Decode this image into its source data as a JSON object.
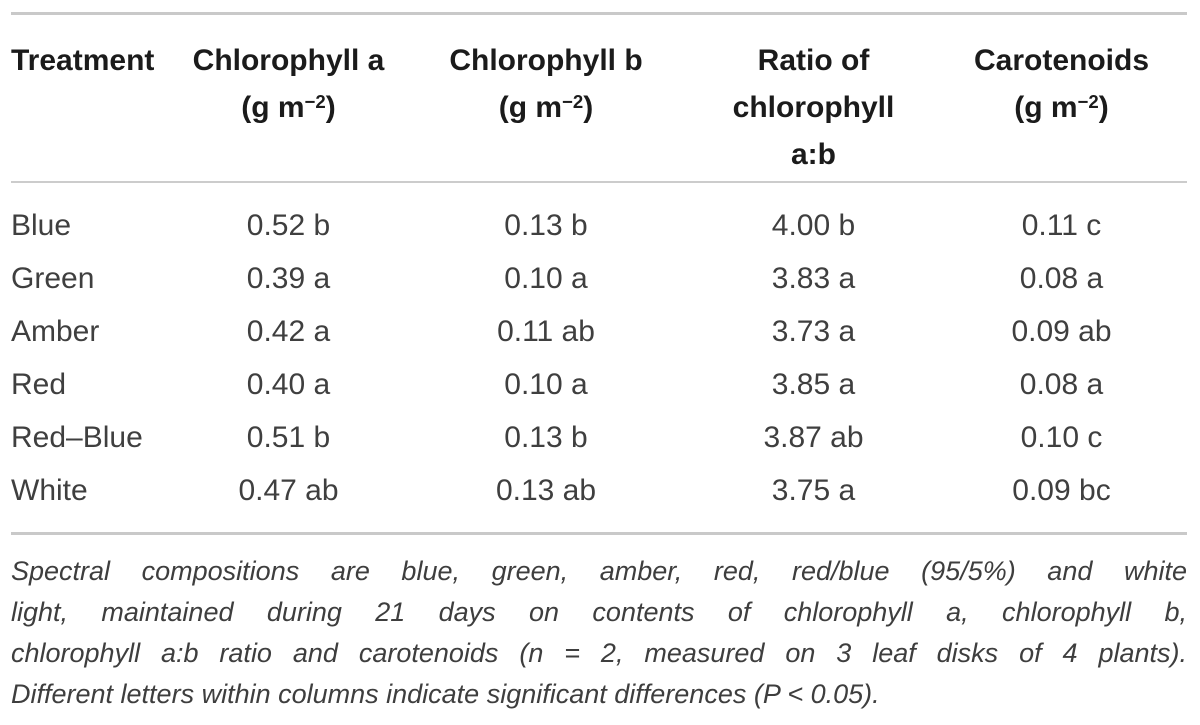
{
  "table": {
    "columns": [
      {
        "name": "Treatment"
      },
      {
        "name": "Chlorophyll a",
        "unit_prefix": "(g m",
        "unit_exponent": "−2",
        "unit_suffix": ")"
      },
      {
        "name": "Chlorophyll b",
        "unit_prefix": "(g m",
        "unit_exponent": "−2",
        "unit_suffix": ")"
      },
      {
        "name_line1": "Ratio of",
        "name_line2": "chlorophyll",
        "name_line3": "a:b"
      },
      {
        "name": "Carotenoids",
        "unit_prefix": "(g m",
        "unit_exponent": "−2",
        "unit_suffix": ")"
      }
    ],
    "rows": [
      {
        "treatment": "Blue",
        "chlorophyll_a": "0.52 b",
        "chlorophyll_b": "0.13 b",
        "ratio_ab": "4.00 b",
        "carotenoids": "0.11 c"
      },
      {
        "treatment": "Green",
        "chlorophyll_a": "0.39 a",
        "chlorophyll_b": "0.10 a",
        "ratio_ab": "3.83 a",
        "carotenoids": "0.08 a"
      },
      {
        "treatment": "Amber",
        "chlorophyll_a": "0.42 a",
        "chlorophyll_b": "0.11 ab",
        "ratio_ab": "3.73 a",
        "carotenoids": "0.09 ab"
      },
      {
        "treatment": "Red",
        "chlorophyll_a": "0.40 a",
        "chlorophyll_b": "0.10 a",
        "ratio_ab": "3.85 a",
        "carotenoids": "0.08 a"
      },
      {
        "treatment": "Red–Blue",
        "chlorophyll_a": "0.51 b",
        "chlorophyll_b": "0.13 b",
        "ratio_ab": "3.87 ab",
        "carotenoids": "0.10 c"
      },
      {
        "treatment": "White",
        "chlorophyll_a": "0.47 ab",
        "chlorophyll_b": "0.13 ab",
        "ratio_ab": "3.75 a",
        "carotenoids": "0.09 bc"
      }
    ]
  },
  "footnote": {
    "lines": [
      "Spectral compositions are blue, green, amber, red, red/blue (95/5%) and white",
      "light, maintained during 21 days on contents of chlorophyll a, chlorophyll b,",
      "chlorophyll a:b ratio and carotenoids (n = 2, measured on 3 leaf disks of 4 plants).",
      "Different letters within columns indicate significant differences (P < 0.05)."
    ]
  },
  "colors": {
    "rule": "#c9c9c9",
    "header_text": "#1b1b1b",
    "body_text": "#3f3f3f",
    "footnote_text": "#3e3e3e"
  }
}
